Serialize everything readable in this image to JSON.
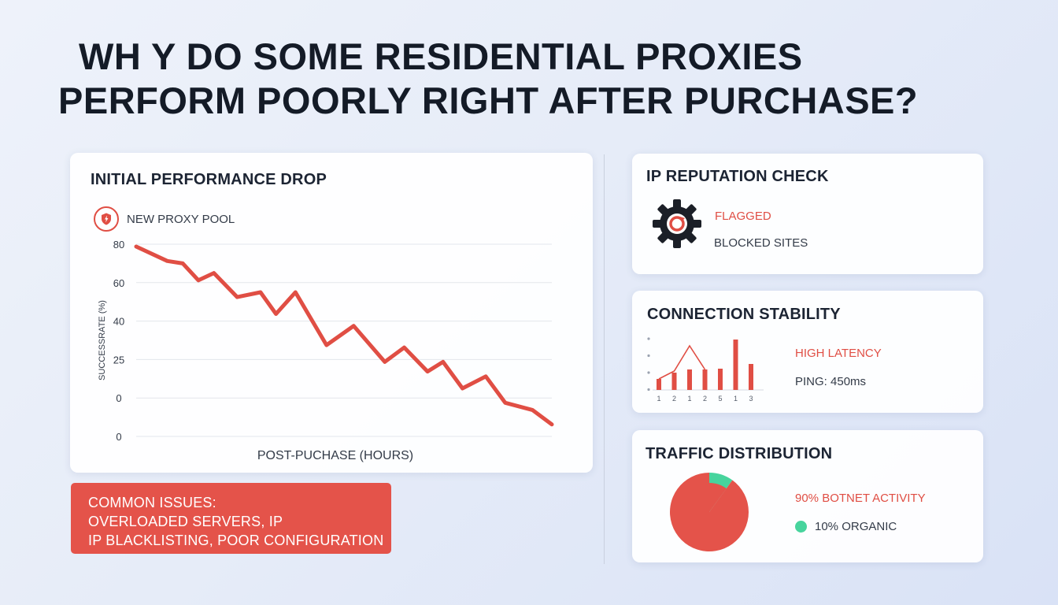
{
  "title": {
    "line1": "WH Y DO SOME RESIDENTIAL PROXIES",
    "line2": "PERFORM POORLY RIGHT AFTER PURCHASE?"
  },
  "main_card": {
    "heading": "INITIAL PERFORMANCE DROP",
    "legend_label": "NEW PROXY POOL",
    "legend_icon": "shield-bolt-icon"
  },
  "chart_data": [
    {
      "type": "line",
      "title": "INITIAL PERFORMANCE DROP",
      "xlabel": "POST-PUCHASE (HOURS)",
      "ylabel": "SUCCESSRATE (%)",
      "yticks": [
        "80",
        "60",
        "40",
        "25",
        "0",
        "0"
      ],
      "ylim": [
        0,
        80
      ],
      "grid": true,
      "series": [
        {
          "name": "NEW PROXY POOL",
          "color": "#e04e44",
          "x": [
            0,
            0.8,
            1.2,
            1.6,
            2,
            2.6,
            3.2,
            3.6,
            4.1,
            4.9,
            5.6,
            6.4,
            6.9,
            7.5,
            7.9,
            8.4,
            9.0,
            9.5,
            10.2,
            10.7
          ],
          "values": [
            79,
            73,
            72,
            65,
            68,
            58,
            60,
            51,
            60,
            38,
            46,
            31,
            37,
            27,
            31,
            20,
            25,
            14,
            11,
            5
          ]
        }
      ]
    },
    {
      "type": "bar",
      "title": "CONNECTION STABILITY",
      "categories": [
        "1",
        "2",
        "1",
        "2",
        "5",
        "1",
        "3"
      ],
      "values": [
        14,
        22,
        26,
        26,
        27,
        64,
        33
      ],
      "line_values": [
        14,
        24,
        56,
        26,
        27,
        64,
        33
      ],
      "color": "#e04e44"
    },
    {
      "type": "pie",
      "title": "TRAFFIC DISTRIBUTION",
      "labels": [
        "BOTNET ACTIVITY",
        "ORGANIC"
      ],
      "values": [
        90,
        10
      ],
      "colors": [
        "#e4534a",
        "#47d49d"
      ]
    }
  ],
  "reputation_card": {
    "heading": "IP REPUTATION CHECK",
    "icon": "gear-alert-icon",
    "status": "FLAGGED",
    "detail": "BLOCKED SITES"
  },
  "stability_card": {
    "heading": "CONNECTION STABILITY",
    "status": "HIGH LATENCY",
    "detail": "PING: 450ms"
  },
  "traffic_card": {
    "heading": "TRAFFIC DISTRIBUTION",
    "botnet_label": "90% BOTNET ACTIVITY",
    "organic_label": "10% ORGANIC"
  },
  "issues": {
    "line1": "COMMON ISSUES:",
    "line2": "OVERLOADED SERVERS, IP",
    "line3": "IP BLACKLISTING, POOR CONFIGURATION"
  },
  "colors": {
    "accent_red": "#e04e44",
    "accent_green": "#47d49d",
    "text_dark": "#1c2433"
  }
}
